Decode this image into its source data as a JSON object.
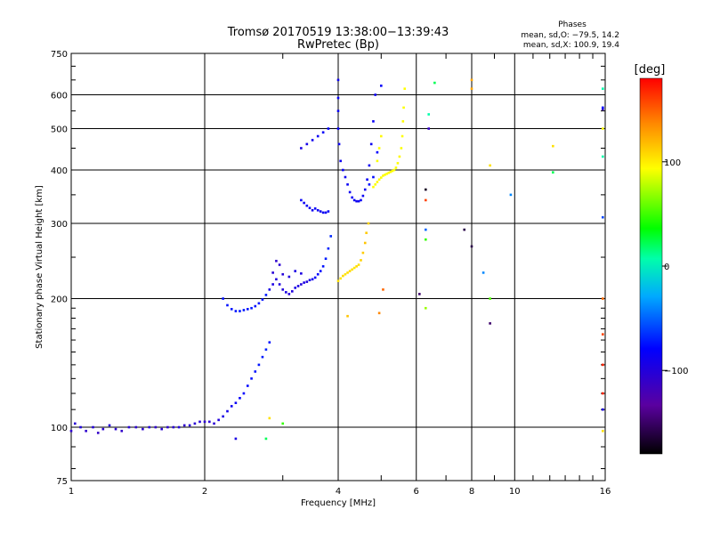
{
  "chart_data": {
    "type": "scatter",
    "title": "Tromsø 20170519 13:38:00−13:39:43",
    "subtitle": "RwPretec (Bp)",
    "xlabel": "Frequency [MHz]",
    "ylabel": "Stationary phase Virtual Height [km]",
    "x_scale": "log",
    "y_scale": "log",
    "xlim": [
      1,
      16
    ],
    "ylim": [
      75,
      750
    ],
    "x_ticks": [
      1,
      2,
      4,
      6,
      8,
      10,
      16
    ],
    "x_tick_labels": [
      "1",
      "2",
      "4",
      "6",
      "8",
      "10",
      "16"
    ],
    "y_ticks": [
      75,
      100,
      200,
      300,
      400,
      500,
      600,
      750
    ],
    "y_tick_labels": [
      "75",
      "100",
      "200",
      "300",
      "400",
      "500",
      "600",
      "750"
    ],
    "grid": true,
    "stats": {
      "heading": "Phases",
      "line_o": "mean, sd,O: −79.5, 14.2",
      "line_x": "mean, sd,X: 100.9, 19.4"
    },
    "colorbar": {
      "label": "[deg]",
      "range": [
        -180,
        180
      ],
      "ticks": [
        100,
        0,
        -100
      ],
      "tick_labels": [
        "100",
        "0",
        "−100"
      ]
    },
    "series": [
      {
        "values": [
          [
            1.0,
            98,
            -118
          ],
          [
            1.02,
            102,
            -115
          ],
          [
            1.05,
            100,
            -112
          ],
          [
            1.08,
            98,
            -118
          ],
          [
            1.12,
            100,
            -114
          ],
          [
            1.15,
            97,
            -120
          ],
          [
            1.18,
            99,
            -116
          ],
          [
            1.22,
            101,
            -113
          ],
          [
            1.26,
            99,
            -117
          ],
          [
            1.3,
            98,
            -119
          ],
          [
            1.35,
            100,
            -115
          ],
          [
            1.4,
            100,
            -117
          ],
          [
            1.45,
            99,
            -116
          ],
          [
            1.5,
            100,
            -114
          ],
          [
            1.55,
            100,
            -118
          ],
          [
            1.6,
            99,
            -115
          ],
          [
            1.65,
            100,
            -117
          ],
          [
            1.7,
            100,
            -116
          ],
          [
            1.75,
            100,
            -113
          ],
          [
            1.8,
            101,
            -118
          ],
          [
            1.85,
            101,
            -115
          ],
          [
            1.9,
            102,
            -116
          ],
          [
            1.95,
            103,
            -114
          ],
          [
            2.0,
            103,
            -117
          ],
          [
            2.05,
            103,
            -115
          ],
          [
            2.1,
            102,
            -116
          ],
          [
            2.15,
            104,
            -113
          ],
          [
            2.2,
            106,
            -110
          ],
          [
            2.25,
            109,
            -108
          ],
          [
            2.3,
            112,
            -105
          ],
          [
            2.35,
            114,
            -104
          ],
          [
            2.4,
            117,
            -102
          ],
          [
            2.45,
            120,
            -100
          ],
          [
            2.5,
            125,
            -98
          ],
          [
            2.55,
            130,
            -96
          ],
          [
            2.6,
            135,
            -95
          ],
          [
            2.65,
            140,
            -94
          ],
          [
            2.7,
            146,
            -92
          ],
          [
            2.75,
            152,
            -90
          ],
          [
            2.8,
            158,
            -95
          ]
        ]
      },
      {
        "values": [
          [
            2.2,
            200,
            -96
          ],
          [
            2.25,
            193,
            -95
          ],
          [
            2.3,
            189,
            -94
          ],
          [
            2.35,
            187,
            -95
          ],
          [
            2.4,
            187,
            -93
          ],
          [
            2.45,
            188,
            -94
          ],
          [
            2.5,
            189,
            -95
          ],
          [
            2.55,
            190,
            -93
          ],
          [
            2.6,
            192,
            -96
          ],
          [
            2.65,
            195,
            -94
          ],
          [
            2.7,
            199,
            -95
          ],
          [
            2.75,
            204,
            -93
          ],
          [
            2.8,
            210,
            -108
          ],
          [
            2.85,
            216,
            -110
          ],
          [
            2.9,
            222,
            -112
          ],
          [
            2.95,
            216,
            -111
          ],
          [
            3.0,
            210,
            -113
          ],
          [
            3.05,
            207,
            -110
          ],
          [
            3.1,
            205,
            -114
          ],
          [
            3.15,
            208,
            -112
          ],
          [
            3.2,
            212,
            -109
          ],
          [
            3.25,
            214,
            -111
          ],
          [
            3.3,
            216,
            -113
          ],
          [
            3.35,
            218,
            -110
          ],
          [
            3.4,
            219,
            -112
          ],
          [
            3.45,
            221,
            -108
          ],
          [
            3.5,
            222,
            -105
          ],
          [
            3.55,
            224,
            -102
          ],
          [
            3.6,
            228,
            -100
          ],
          [
            3.65,
            232,
            -98
          ],
          [
            3.7,
            238,
            -95
          ],
          [
            3.75,
            248,
            -92
          ],
          [
            3.8,
            262,
            -90
          ],
          [
            3.85,
            280,
            -88
          ],
          [
            2.85,
            230,
            -115
          ],
          [
            2.9,
            245,
            -118
          ],
          [
            2.95,
            240,
            -116
          ],
          [
            3.0,
            228,
            -114
          ],
          [
            3.1,
            225,
            -112
          ],
          [
            3.2,
            232,
            -110
          ],
          [
            3.3,
            229,
            -111
          ]
        ]
      },
      {
        "values": [
          [
            3.5,
            322,
            -105
          ],
          [
            3.55,
            325,
            -103
          ],
          [
            3.6,
            322,
            -104
          ],
          [
            3.65,
            320,
            -106
          ],
          [
            3.7,
            318,
            -105
          ],
          [
            3.75,
            318,
            -104
          ],
          [
            3.8,
            320,
            -103
          ],
          [
            3.3,
            340,
            -102
          ],
          [
            3.35,
            335,
            -104
          ],
          [
            3.4,
            330,
            -103
          ],
          [
            3.45,
            326,
            -105
          ],
          [
            3.3,
            450,
            -110
          ],
          [
            3.4,
            460,
            -108
          ],
          [
            3.5,
            470,
            -106
          ],
          [
            3.6,
            480,
            -104
          ],
          [
            3.7,
            490,
            -102
          ],
          [
            3.8,
            500,
            -100
          ],
          [
            4.0,
            650,
            -105
          ],
          [
            4.0,
            590,
            -103
          ],
          [
            4.0,
            550,
            -104
          ],
          [
            4.0,
            500,
            -102
          ],
          [
            4.02,
            460,
            -104
          ],
          [
            4.05,
            420,
            -105
          ],
          [
            4.1,
            400,
            -103
          ],
          [
            4.15,
            385,
            -106
          ],
          [
            4.2,
            370,
            -104
          ],
          [
            4.25,
            355,
            -105
          ],
          [
            4.3,
            345,
            -103
          ],
          [
            4.35,
            340,
            -104
          ],
          [
            4.4,
            338,
            -106
          ],
          [
            4.45,
            338,
            -105
          ],
          [
            4.5,
            340,
            -103
          ],
          [
            4.55,
            348,
            -104
          ],
          [
            4.6,
            360,
            -105
          ],
          [
            4.65,
            380,
            -103
          ],
          [
            4.7,
            410,
            -104
          ],
          [
            4.75,
            460,
            -105
          ],
          [
            4.8,
            520,
            -103
          ],
          [
            4.85,
            600,
            -104
          ],
          [
            4.7,
            370,
            -95
          ],
          [
            4.8,
            385,
            -98
          ],
          [
            4.9,
            440,
            -100
          ],
          [
            5.0,
            630,
            -102
          ]
        ]
      },
      {
        "values": [
          [
            4.0,
            220,
            110
          ],
          [
            4.05,
            223,
            108
          ],
          [
            4.1,
            226,
            112
          ],
          [
            4.15,
            228,
            109
          ],
          [
            4.2,
            230,
            111
          ],
          [
            4.25,
            232,
            113
          ],
          [
            4.3,
            234,
            110
          ],
          [
            4.35,
            236,
            108
          ],
          [
            4.4,
            238,
            112
          ],
          [
            4.45,
            240,
            110
          ],
          [
            4.5,
            246,
            115
          ],
          [
            4.55,
            256,
            117
          ],
          [
            4.6,
            270,
            120
          ],
          [
            4.63,
            285,
            118
          ],
          [
            4.68,
            300,
            115
          ]
        ]
      },
      {
        "values": [
          [
            4.8,
            365,
            100
          ],
          [
            4.85,
            370,
            98
          ],
          [
            4.9,
            375,
            102
          ],
          [
            4.95,
            380,
            100
          ],
          [
            5.0,
            384,
            98
          ],
          [
            5.05,
            388,
            101
          ],
          [
            5.1,
            390,
            99
          ],
          [
            5.15,
            392,
            100
          ],
          [
            5.2,
            394,
            102
          ],
          [
            5.25,
            396,
            98
          ],
          [
            5.3,
            398,
            100
          ],
          [
            5.35,
            400,
            101
          ],
          [
            5.4,
            405,
            99
          ],
          [
            5.45,
            415,
            100
          ],
          [
            5.5,
            430,
            102
          ],
          [
            5.55,
            450,
            98
          ],
          [
            5.58,
            480,
            100
          ],
          [
            5.6,
            520,
            101
          ],
          [
            5.62,
            560,
            99
          ],
          [
            5.65,
            620,
            100
          ],
          [
            4.9,
            420,
            98
          ],
          [
            4.95,
            450,
            100
          ],
          [
            5.0,
            480,
            102
          ]
        ]
      },
      {
        "values": [
          [
            2.35,
            94,
            -110
          ],
          [
            2.75,
            94,
            -10
          ],
          [
            2.8,
            105,
            110
          ],
          [
            3.0,
            102,
            20
          ],
          [
            4.95,
            185,
            140
          ],
          [
            4.2,
            182,
            120
          ],
          [
            5.05,
            210,
            150
          ],
          [
            6.1,
            205,
            -150
          ],
          [
            6.3,
            190,
            60
          ],
          [
            6.4,
            500,
            -120
          ],
          [
            6.3,
            275,
            20
          ],
          [
            6.3,
            290,
            -70
          ],
          [
            6.3,
            340,
            160
          ],
          [
            6.3,
            360,
            -170
          ],
          [
            6.6,
            640,
            -10
          ],
          [
            6.4,
            540,
            -20
          ],
          [
            7.7,
            290,
            -160
          ],
          [
            8.0,
            265,
            -160
          ],
          [
            8.0,
            650,
            130
          ],
          [
            8.0,
            620,
            130
          ],
          [
            8.5,
            230,
            -60
          ],
          [
            8.8,
            200,
            30
          ],
          [
            8.8,
            175,
            -150
          ],
          [
            8.8,
            410,
            110
          ],
          [
            9.8,
            350,
            -60
          ],
          [
            12.2,
            455,
            110
          ],
          [
            12.2,
            395,
            -10
          ],
          [
            15.8,
            620,
            -20
          ],
          [
            15.8,
            555,
            -120
          ],
          [
            15.8,
            500,
            100
          ],
          [
            15.8,
            430,
            -20
          ],
          [
            15.8,
            310,
            -80
          ],
          [
            15.8,
            200,
            150
          ],
          [
            15.8,
            165,
            160
          ],
          [
            15.8,
            140,
            170
          ],
          [
            15.8,
            120,
            170
          ],
          [
            15.8,
            110,
            -110
          ],
          [
            15.8,
            98,
            110
          ],
          [
            15.8,
            560,
            -100
          ]
        ]
      }
    ]
  }
}
